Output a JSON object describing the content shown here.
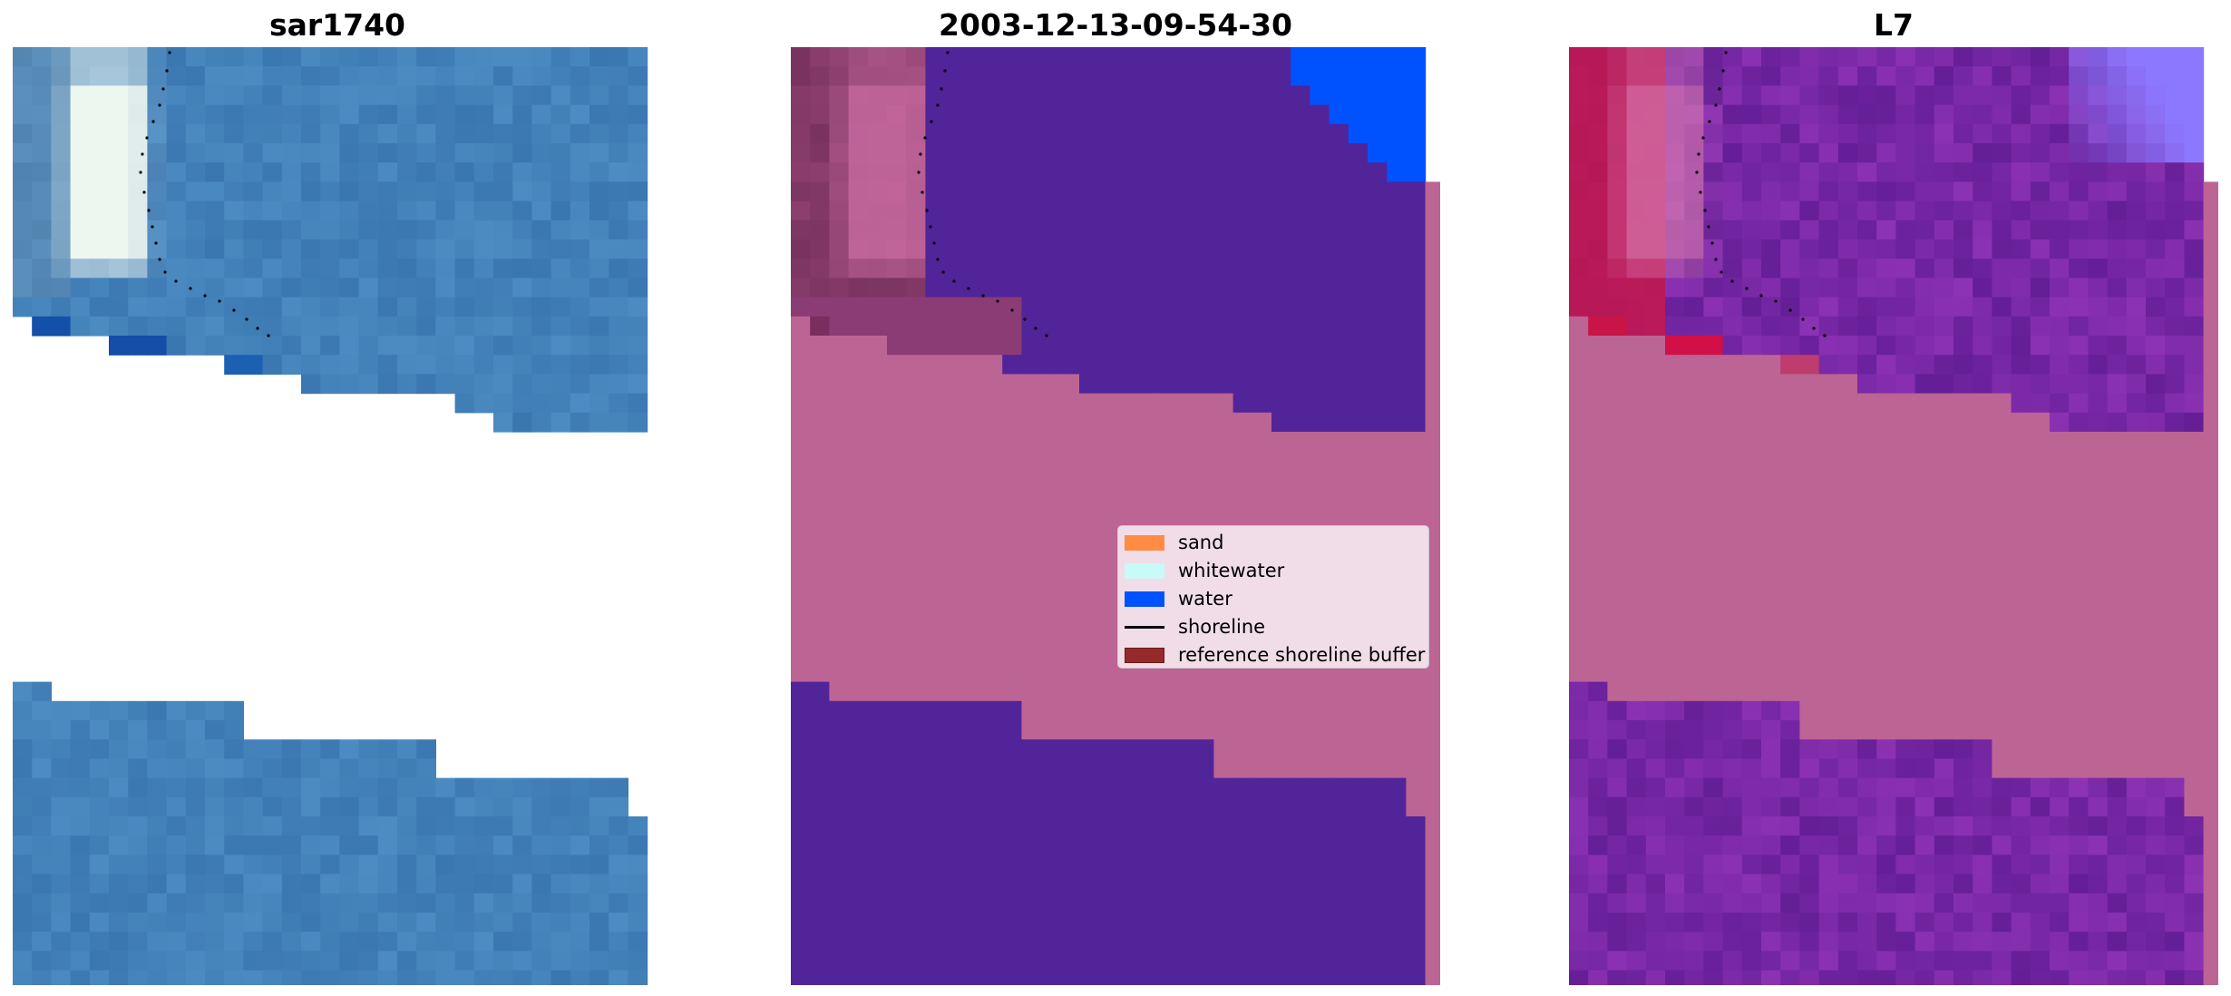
{
  "panels": [
    {
      "title": "sar1740",
      "style": "rgb"
    },
    {
      "title": "2003-12-13-09-54-30",
      "style": "classified"
    },
    {
      "title": "L7",
      "style": "index"
    }
  ],
  "legend": {
    "placement": "center-right of middle panel",
    "items": [
      {
        "label": "sand",
        "kind": "patch",
        "color": "#ff8c42"
      },
      {
        "label": "whitewater",
        "kind": "patch",
        "color": "#c8faf7"
      },
      {
        "label": "water",
        "kind": "patch",
        "color": "#0052ff"
      },
      {
        "label": "shoreline",
        "kind": "line",
        "color": "#000000"
      },
      {
        "label": "reference shoreline buffer",
        "kind": "patch",
        "color": "#962a2a"
      }
    ]
  },
  "colors": {
    "nodata_overlay": "#bc6494",
    "water_class": "#52249a",
    "water_deep": "#0052ff",
    "rgb_base": "#3a78b4",
    "index_base": "#6a2ea0",
    "index_land": "#c4164a"
  },
  "chart_data": {
    "type": "heatmap",
    "layout": "three image panels side by side, axes hidden",
    "titles": [
      "sar1740",
      "2003-12-13-09-54-30",
      "L7"
    ],
    "grid_cells": {
      "columns": 33,
      "rows": 49
    },
    "series": [
      {
        "name": "shoreline",
        "style": "dotted black line"
      }
    ],
    "grid": false
  }
}
